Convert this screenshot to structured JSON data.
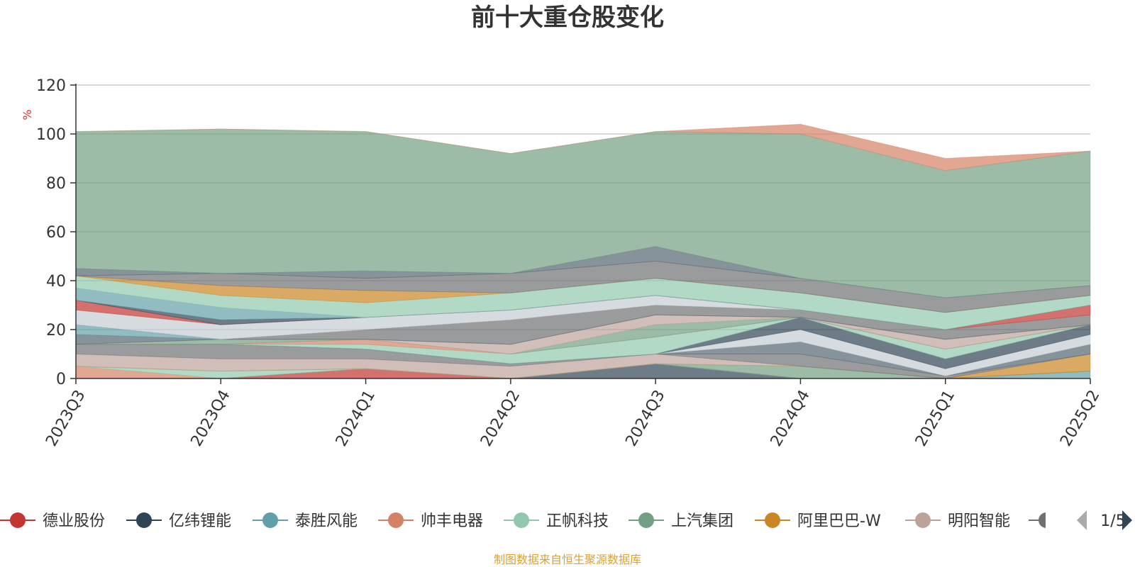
{
  "chart_data": {
    "type": "area",
    "title": "前十大重仓股变化",
    "ylabel": "%",
    "ylim": [
      0,
      120
    ],
    "yticks": [
      0,
      20,
      40,
      60,
      80,
      100,
      120
    ],
    "grid": true,
    "legend_position": "bottom",
    "categories": [
      "2023Q3",
      "2023Q4",
      "2024Q1",
      "2024Q2",
      "2024Q3",
      "2024Q4",
      "2025Q1",
      "2025Q2"
    ],
    "series": [
      {
        "name": "德业股份",
        "color": "#c23531",
        "values": [
          0,
          0,
          4,
          0,
          0,
          0,
          0,
          0
        ]
      },
      {
        "name": "亿纬锂能",
        "color": "#2f4554",
        "values": [
          0,
          0,
          0,
          0,
          6,
          0,
          0,
          0
        ]
      },
      {
        "name": "泰胜风能",
        "color": "#61a0a8",
        "values": [
          0,
          0,
          0,
          0,
          0,
          0,
          0,
          3
        ]
      },
      {
        "name": "帅丰电器",
        "color": "#d48265",
        "values": [
          5,
          0,
          0,
          0,
          0,
          0,
          0,
          0
        ]
      },
      {
        "name": "正帆科技",
        "color": "#91c7ae",
        "values": [
          0,
          3,
          0,
          0,
          0,
          0,
          0,
          0
        ]
      },
      {
        "name": "上汽集团",
        "color": "#749f83",
        "values": [
          0,
          0,
          0,
          0,
          0,
          5,
          0,
          0
        ]
      },
      {
        "name": "阿里巴巴-W",
        "color": "#ca8622",
        "values": [
          0,
          0,
          0,
          0,
          0,
          0,
          0,
          7
        ]
      },
      {
        "name": "明阳智能",
        "color": "#bda29a",
        "values": [
          5,
          5,
          4,
          5,
          4,
          0,
          0,
          0
        ]
      },
      {
        "color": "#6e7074",
        "values": [
          4,
          6,
          4,
          1,
          0,
          5,
          1,
          0
        ]
      },
      {
        "color": "#546570",
        "values": [
          0,
          0,
          0,
          0,
          0,
          5,
          0,
          4
        ]
      },
      {
        "color": "#c4ccd3",
        "values": [
          0,
          0,
          0,
          0,
          0,
          5,
          3,
          4
        ]
      },
      {
        "color": "#2f4554",
        "values": [
          0,
          0,
          0,
          0,
          0,
          5,
          4,
          4
        ]
      },
      {
        "color": "#91c7ae",
        "values": [
          0,
          0,
          2,
          4,
          7,
          0,
          4,
          0
        ]
      },
      {
        "color": "#d48265",
        "values": [
          0,
          0,
          2,
          0,
          0,
          0,
          0,
          0
        ]
      },
      {
        "color": "#749f83",
        "values": [
          0,
          2,
          0,
          0,
          5,
          0,
          0,
          0
        ]
      },
      {
        "color": "#bda29a",
        "values": [
          0,
          0,
          0,
          4,
          4,
          0,
          4,
          0
        ]
      },
      {
        "color": "#546570",
        "values": [
          4,
          0,
          0,
          0,
          0,
          0,
          0,
          0
        ]
      },
      {
        "color": "#61a0a8",
        "values": [
          4,
          0,
          0,
          0,
          0,
          0,
          0,
          0
        ]
      },
      {
        "color": "#6e7074",
        "values": [
          0,
          0,
          4,
          10,
          4,
          3,
          4,
          4
        ]
      },
      {
        "color": "#c4ccd3",
        "values": [
          6,
          6,
          5,
          4,
          4,
          0,
          0,
          0
        ]
      },
      {
        "color": "#c23531",
        "values": [
          4,
          0,
          0,
          0,
          0,
          0,
          0,
          4
        ]
      },
      {
        "color": "#2f4554",
        "values": [
          0,
          2,
          0,
          0,
          0,
          0,
          0,
          0
        ]
      },
      {
        "color": "#61a0a8",
        "values": [
          5,
          5,
          0,
          0,
          0,
          0,
          0,
          0
        ]
      },
      {
        "color": "#91c7ae",
        "values": [
          5,
          5,
          6,
          7,
          7,
          7,
          7,
          4
        ]
      },
      {
        "color": "#ca8622",
        "values": [
          0,
          4,
          5,
          0,
          0,
          0,
          0,
          0
        ]
      },
      {
        "color": "#6e7074",
        "values": [
          0,
          5,
          5,
          8,
          7,
          6,
          6,
          4
        ]
      },
      {
        "color": "#546570",
        "values": [
          3,
          0,
          3,
          0,
          6,
          0,
          0,
          0
        ]
      },
      {
        "color": "#749f83",
        "values": [
          56,
          59,
          57,
          49,
          47,
          59,
          52,
          55
        ]
      },
      {
        "color": "#d48265",
        "values": [
          0,
          0,
          0,
          0,
          0,
          4,
          5,
          0
        ]
      }
    ]
  },
  "legend": {
    "items": [
      {
        "label": "德业股份",
        "color": "#c23531"
      },
      {
        "label": "亿纬锂能",
        "color": "#2f4554"
      },
      {
        "label": "泰胜风能",
        "color": "#61a0a8"
      },
      {
        "label": "帅丰电器",
        "color": "#d48265"
      },
      {
        "label": "正帆科技",
        "color": "#91c7ae"
      },
      {
        "label": "上汽集团",
        "color": "#749f83"
      },
      {
        "label": "阿里巴巴-W",
        "color": "#ca8622"
      },
      {
        "label": "明阳智能",
        "color": "#bda29a"
      }
    ],
    "partial_color": "#6e7074",
    "page": "1/5"
  },
  "source_note": "制图数据来自恒生聚源数据库"
}
